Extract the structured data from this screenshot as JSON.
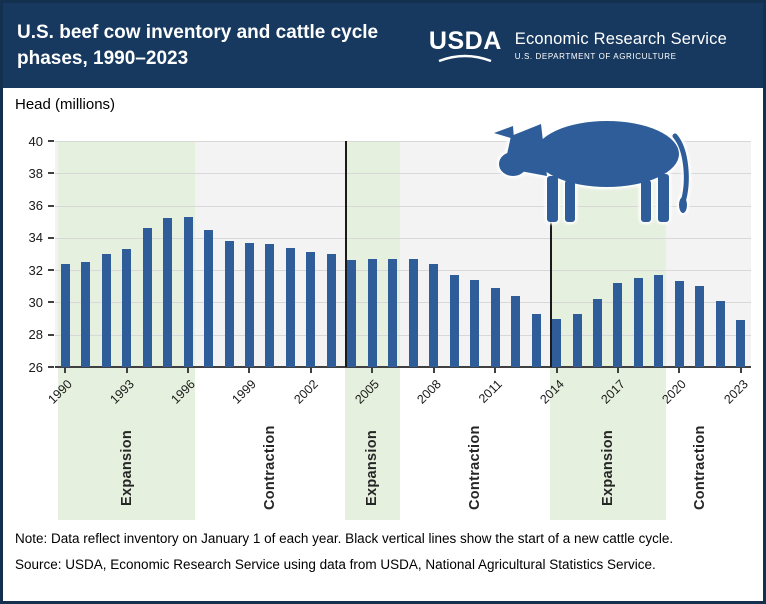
{
  "header": {
    "title_line1": "U.S. beef cow inventory and cattle cycle",
    "title_line2": "phases, 1990–2023",
    "logo_text": "USDA",
    "agency": "Economic Research Service",
    "department": "U.S. DEPARTMENT OF AGRICULTURE"
  },
  "chart": {
    "y_axis_label": "Head (millions)"
  },
  "chart_data": {
    "type": "bar",
    "title": "U.S. beef cow inventory and cattle cycle phases, 1990–2023",
    "ylabel": "Head (millions)",
    "ylim": [
      26,
      40
    ],
    "yticks": [
      26,
      28,
      30,
      32,
      34,
      36,
      38,
      40
    ],
    "x": [
      1990,
      1991,
      1992,
      1993,
      1994,
      1995,
      1996,
      1997,
      1998,
      1999,
      2000,
      2001,
      2002,
      2003,
      2004,
      2005,
      2006,
      2007,
      2008,
      2009,
      2010,
      2011,
      2012,
      2013,
      2014,
      2015,
      2016,
      2017,
      2018,
      2019,
      2020,
      2021,
      2022,
      2023
    ],
    "values": [
      32.4,
      32.5,
      33.0,
      33.3,
      34.6,
      35.2,
      35.3,
      34.5,
      33.8,
      33.7,
      33.6,
      33.4,
      33.1,
      33.0,
      32.6,
      32.7,
      32.7,
      32.7,
      32.4,
      31.7,
      31.4,
      30.9,
      30.4,
      29.3,
      29.0,
      29.3,
      30.2,
      31.2,
      31.5,
      31.7,
      31.3,
      31.0,
      30.1,
      28.9
    ],
    "x_tick_years": [
      1990,
      1993,
      1996,
      1999,
      2002,
      2005,
      2008,
      2011,
      2014,
      2017,
      2020,
      2023
    ],
    "bar_color": "#2e5d99",
    "expansion_band_color": "#e6f0de",
    "cycle_start_years": [
      2004,
      2014
    ],
    "phases": [
      {
        "label": "Expansion",
        "type": "expansion",
        "start": 1990,
        "end": 1996
      },
      {
        "label": "Contraction",
        "type": "contraction",
        "start": 1996,
        "end": 2004
      },
      {
        "label": "Expansion",
        "type": "expansion",
        "start": 2004,
        "end": 2006
      },
      {
        "label": "Contraction",
        "type": "contraction",
        "start": 2006,
        "end": 2014
      },
      {
        "label": "Expansion",
        "type": "expansion",
        "start": 2014,
        "end": 2019
      },
      {
        "label": "Contraction",
        "type": "contraction",
        "start": 2019,
        "end": 2023
      }
    ],
    "legend_position": "none",
    "grid": true
  },
  "notes": {
    "note": "Note: Data reflect inventory on January 1 of each year. Black vertical lines show the start of a new cattle cycle.",
    "source": "Source: USDA, Economic Research Service using data from USDA, National Agricultural Statistics Service."
  }
}
